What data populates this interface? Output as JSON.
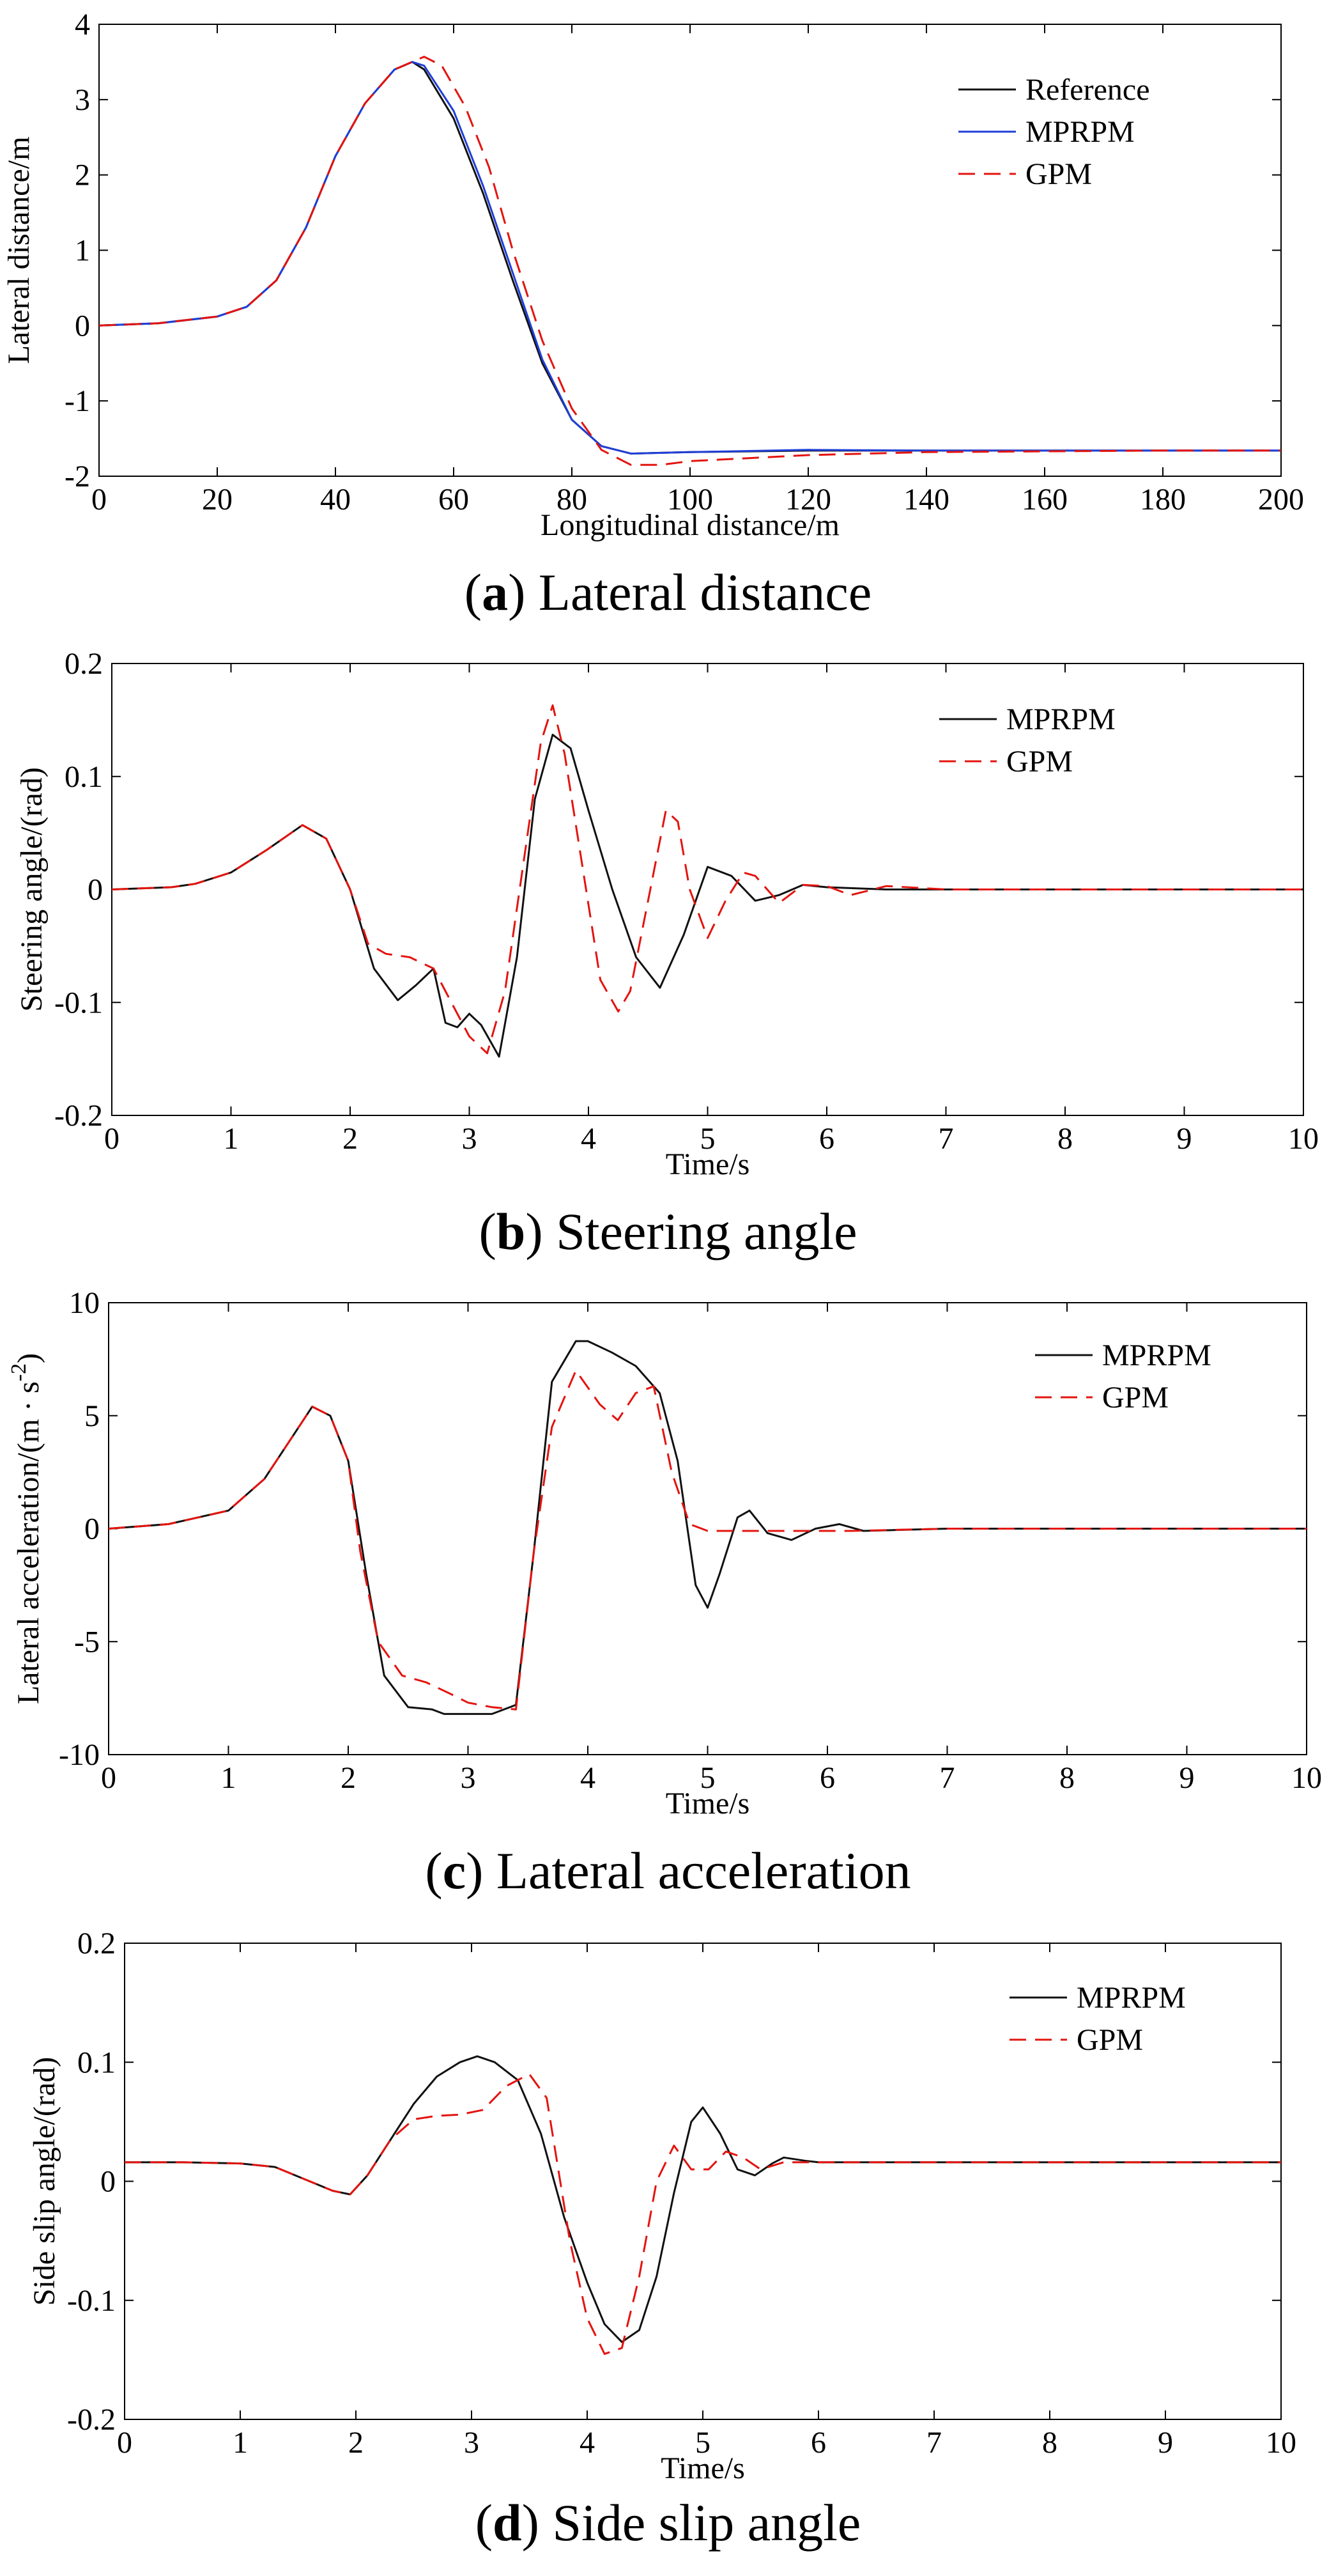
{
  "charts_meta": {
    "colors": {
      "axis": "#000000",
      "black": "#111111",
      "blue": "#1f3fd8",
      "red": "#e3140f"
    }
  },
  "chart_data": [
    {
      "type": "line",
      "caption_letter": "a",
      "caption_text": "Lateral distance",
      "xlabel": "Longitudinal distance/m",
      "ylabel": "Lateral distance/m",
      "xlim": [
        0,
        200
      ],
      "ylim": [
        -2,
        4
      ],
      "xticks": [
        "0",
        "20",
        "40",
        "60",
        "80",
        "100",
        "120",
        "140",
        "160",
        "180",
        "200"
      ],
      "yticks": [
        "-2",
        "-1",
        "0",
        "1",
        "2",
        "3",
        "4"
      ],
      "legend": "top-right",
      "series": [
        {
          "name": "Reference",
          "color": "#111111",
          "dash": "solid",
          "x": [
            0,
            10,
            20,
            25,
            30,
            35,
            40,
            45,
            50,
            53,
            55,
            60,
            65,
            70,
            75,
            80,
            85,
            90,
            100,
            120,
            140,
            160,
            180,
            200
          ],
          "y": [
            0,
            0.03,
            0.12,
            0.25,
            0.6,
            1.3,
            2.25,
            2.95,
            3.4,
            3.5,
            3.4,
            2.75,
            1.75,
            0.6,
            -0.5,
            -1.25,
            -1.6,
            -1.7,
            -1.68,
            -1.66,
            -1.66,
            -1.66,
            -1.66,
            -1.66
          ]
        },
        {
          "name": "MPRPM",
          "color": "#1f3fd8",
          "dash": "solid",
          "x": [
            0,
            10,
            20,
            25,
            30,
            35,
            40,
            45,
            50,
            53,
            55,
            60,
            65,
            70,
            75,
            80,
            85,
            90,
            100,
            120,
            140,
            160,
            180,
            200
          ],
          "y": [
            0,
            0.03,
            0.12,
            0.25,
            0.6,
            1.3,
            2.25,
            2.95,
            3.4,
            3.5,
            3.45,
            2.85,
            1.85,
            0.7,
            -0.45,
            -1.25,
            -1.6,
            -1.7,
            -1.68,
            -1.65,
            -1.66,
            -1.66,
            -1.66,
            -1.66
          ]
        },
        {
          "name": "GPM",
          "color": "#e3140f",
          "dash": "dashed",
          "x": [
            0,
            10,
            20,
            25,
            30,
            35,
            40,
            45,
            50,
            55,
            58,
            62,
            66,
            70,
            75,
            80,
            85,
            90,
            95,
            100,
            110,
            120,
            140,
            160,
            180,
            200
          ],
          "y": [
            0,
            0.03,
            0.12,
            0.25,
            0.6,
            1.3,
            2.25,
            2.95,
            3.4,
            3.57,
            3.45,
            2.9,
            2.1,
            1.0,
            -0.2,
            -1.1,
            -1.65,
            -1.85,
            -1.85,
            -1.8,
            -1.76,
            -1.72,
            -1.68,
            -1.67,
            -1.66,
            -1.66
          ]
        }
      ]
    },
    {
      "type": "line",
      "caption_letter": "b",
      "caption_text": "Steering angle",
      "xlabel": "Time/s",
      "ylabel": "Steering angle/(rad)",
      "xlim": [
        0,
        10
      ],
      "ylim": [
        -0.2,
        0.2
      ],
      "xticks": [
        "0",
        "1",
        "2",
        "3",
        "4",
        "5",
        "6",
        "7",
        "8",
        "9",
        "10"
      ],
      "yticks": [
        "-0.2",
        "-0.1",
        "0",
        "0.1",
        "0.2"
      ],
      "legend": "top-right",
      "series": [
        {
          "name": "MPRPM",
          "color": "#111111",
          "dash": "solid",
          "x": [
            0,
            0.5,
            0.7,
            1.0,
            1.3,
            1.6,
            1.8,
            2.0,
            2.2,
            2.4,
            2.55,
            2.7,
            2.8,
            2.9,
            3.0,
            3.1,
            3.25,
            3.4,
            3.55,
            3.7,
            3.85,
            4.0,
            4.2,
            4.4,
            4.6,
            4.8,
            5.0,
            5.2,
            5.4,
            5.6,
            5.8,
            6.0,
            6.5,
            7,
            8,
            9,
            10
          ],
          "y": [
            0,
            0.002,
            0.005,
            0.015,
            0.035,
            0.057,
            0.045,
            0.0,
            -0.07,
            -0.098,
            -0.085,
            -0.07,
            -0.118,
            -0.122,
            -0.11,
            -0.12,
            -0.148,
            -0.06,
            0.08,
            0.137,
            0.125,
            0.07,
            0.0,
            -0.06,
            -0.087,
            -0.04,
            0.02,
            0.012,
            -0.01,
            -0.005,
            0.004,
            0.002,
            0,
            0,
            0,
            0,
            0
          ]
        },
        {
          "name": "GPM",
          "color": "#e3140f",
          "dash": "dashed",
          "x": [
            0,
            0.5,
            0.7,
            1.0,
            1.3,
            1.6,
            1.8,
            2.0,
            2.15,
            2.3,
            2.5,
            2.7,
            2.85,
            3.0,
            3.15,
            3.3,
            3.45,
            3.6,
            3.7,
            3.8,
            3.95,
            4.1,
            4.25,
            4.35,
            4.5,
            4.65,
            4.75,
            4.85,
            5.0,
            5.15,
            5.3,
            5.4,
            5.6,
            5.8,
            6.0,
            6.2,
            6.5,
            7,
            8,
            9,
            10
          ],
          "y": [
            0,
            0.002,
            0.005,
            0.015,
            0.035,
            0.057,
            0.045,
            0.0,
            -0.048,
            -0.057,
            -0.06,
            -0.07,
            -0.1,
            -0.13,
            -0.145,
            -0.09,
            0.02,
            0.13,
            0.163,
            0.12,
            0.02,
            -0.08,
            -0.108,
            -0.09,
            -0.01,
            0.07,
            0.06,
            0.0,
            -0.043,
            -0.01,
            0.015,
            0.012,
            -0.012,
            0.004,
            0.003,
            -0.005,
            0.003,
            0,
            0,
            0,
            0
          ]
        }
      ]
    },
    {
      "type": "line",
      "caption_letter": "c",
      "caption_text": "Lateral acceleration",
      "xlabel": "Time/s",
      "ylabel": "Lateral acceleration/(m · s",
      "ylabel_sup": "-2",
      "ylabel_end": ")",
      "xlim": [
        0,
        10
      ],
      "ylim": [
        -10,
        10
      ],
      "xticks": [
        "0",
        "1",
        "2",
        "3",
        "4",
        "5",
        "6",
        "7",
        "8",
        "9",
        "10"
      ],
      "yticks": [
        "-10",
        "-5",
        "0",
        "5",
        "10"
      ],
      "legend": "top-right",
      "series": [
        {
          "name": "MPRPM",
          "color": "#111111",
          "dash": "solid",
          "x": [
            0,
            0.5,
            1.0,
            1.3,
            1.5,
            1.7,
            1.85,
            2.0,
            2.15,
            2.3,
            2.5,
            2.7,
            2.8,
            3.0,
            3.2,
            3.4,
            3.55,
            3.7,
            3.9,
            4.0,
            4.2,
            4.4,
            4.6,
            4.75,
            4.9,
            5.0,
            5.1,
            5.25,
            5.35,
            5.5,
            5.7,
            5.9,
            6.1,
            6.3,
            7,
            8,
            9,
            10
          ],
          "y": [
            0,
            0.2,
            0.8,
            2.2,
            3.8,
            5.4,
            5.0,
            3.0,
            -2.0,
            -6.5,
            -7.9,
            -8.0,
            -8.2,
            -8.2,
            -8.2,
            -7.8,
            -1.0,
            6.5,
            8.3,
            8.3,
            7.8,
            7.2,
            6.0,
            3.0,
            -2.5,
            -3.5,
            -2.0,
            0.5,
            0.8,
            -0.2,
            -0.5,
            0.0,
            0.2,
            -0.1,
            0,
            0,
            0,
            0
          ]
        },
        {
          "name": "GPM",
          "color": "#e3140f",
          "dash": "dashed",
          "x": [
            0,
            0.5,
            1.0,
            1.3,
            1.5,
            1.7,
            1.85,
            2.0,
            2.1,
            2.25,
            2.45,
            2.65,
            2.85,
            3.0,
            3.2,
            3.4,
            3.55,
            3.7,
            3.9,
            4.1,
            4.25,
            4.4,
            4.55,
            4.7,
            4.85,
            5.0,
            5.3,
            5.6,
            5.9,
            6.2,
            7,
            8,
            9,
            10
          ],
          "y": [
            0,
            0.2,
            0.8,
            2.2,
            3.8,
            5.4,
            5.0,
            3.0,
            -1.0,
            -5.0,
            -6.5,
            -6.8,
            -7.3,
            -7.7,
            -7.9,
            -8.0,
            -1.0,
            4.5,
            7.0,
            5.5,
            4.8,
            6.0,
            6.3,
            2.5,
            0.2,
            -0.1,
            -0.1,
            -0.1,
            -0.1,
            -0.1,
            0,
            0,
            0,
            0
          ]
        }
      ]
    },
    {
      "type": "line",
      "caption_letter": "d",
      "caption_text": "Side slip angle",
      "xlabel": "Time/s",
      "ylabel": "Side slip angle/(rad)",
      "xlim": [
        0,
        10
      ],
      "ylim": [
        -0.2,
        0.2
      ],
      "xticks": [
        "0",
        "1",
        "2",
        "3",
        "4",
        "5",
        "6",
        "7",
        "8",
        "9",
        "10"
      ],
      "yticks": [
        "-0.2",
        "-0.1",
        "0",
        "0.1",
        "0.2"
      ],
      "legend": "top-right",
      "series": [
        {
          "name": "MPRPM",
          "color": "#111111",
          "dash": "solid",
          "x": [
            0,
            0.5,
            1.0,
            1.3,
            1.6,
            1.8,
            1.95,
            2.1,
            2.3,
            2.5,
            2.7,
            2.9,
            3.05,
            3.2,
            3.4,
            3.6,
            3.8,
            4.0,
            4.15,
            4.3,
            4.45,
            4.6,
            4.75,
            4.9,
            5.0,
            5.15,
            5.3,
            5.45,
            5.6,
            5.7,
            5.9,
            6.0,
            7,
            8,
            9,
            10
          ],
          "y": [
            0.016,
            0.016,
            0.015,
            0.012,
            0.0,
            -0.008,
            -0.011,
            0.005,
            0.035,
            0.065,
            0.088,
            0.1,
            0.105,
            0.1,
            0.085,
            0.04,
            -0.03,
            -0.085,
            -0.12,
            -0.135,
            -0.125,
            -0.08,
            -0.01,
            0.05,
            0.062,
            0.04,
            0.01,
            0.005,
            0.015,
            0.02,
            0.017,
            0.016,
            0.016,
            0.016,
            0.016,
            0.016
          ]
        },
        {
          "name": "GPM",
          "color": "#e3140f",
          "dash": "dashed",
          "x": [
            0,
            0.5,
            1.0,
            1.3,
            1.6,
            1.8,
            1.95,
            2.1,
            2.3,
            2.5,
            2.7,
            2.9,
            3.1,
            3.3,
            3.5,
            3.65,
            3.85,
            4.0,
            4.15,
            4.3,
            4.45,
            4.6,
            4.75,
            4.9,
            5.05,
            5.2,
            5.35,
            5.5,
            5.7,
            6.0,
            7,
            8,
            9,
            10
          ],
          "y": [
            0.016,
            0.016,
            0.015,
            0.012,
            0.0,
            -0.008,
            -0.011,
            0.005,
            0.035,
            0.052,
            0.055,
            0.056,
            0.06,
            0.08,
            0.09,
            0.07,
            -0.05,
            -0.115,
            -0.145,
            -0.14,
            -0.08,
            0.0,
            0.03,
            0.01,
            0.01,
            0.025,
            0.02,
            0.01,
            0.016,
            0.016,
            0.016,
            0.016,
            0.016,
            0.016
          ]
        }
      ]
    }
  ]
}
